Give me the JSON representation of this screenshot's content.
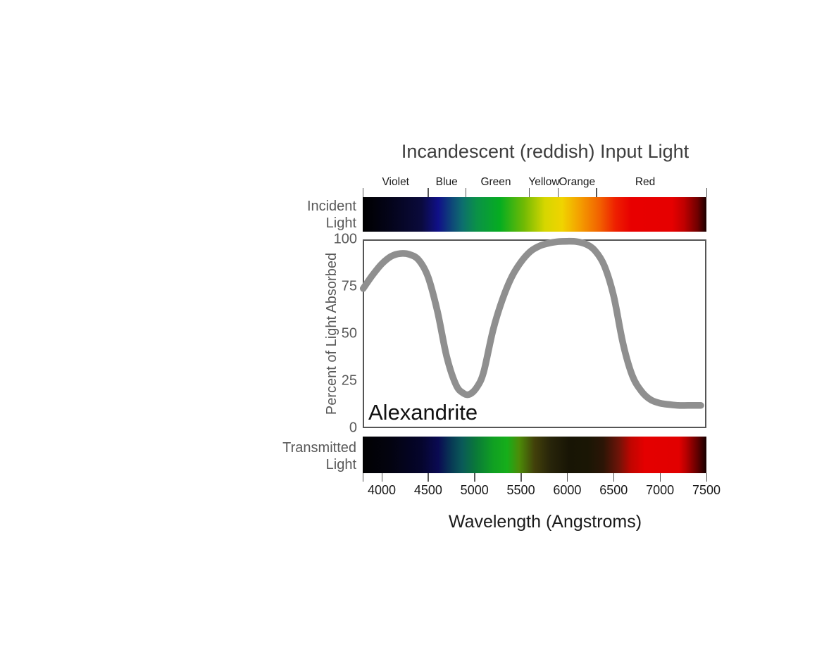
{
  "title": "Incandescent (reddish) Input Light",
  "colors": {
    "curve": "#8f8f8f",
    "axis_text": "#595959",
    "dark_text": "#1a1a1a",
    "title_text": "#3d3d3d",
    "box_border": "#555555",
    "tick": "#555555"
  },
  "incident": {
    "label_lines": [
      "Incident",
      "Light"
    ]
  },
  "transmitted": {
    "label_lines": [
      "Transmitted",
      "Light"
    ]
  },
  "spectrum_labels": {
    "labels": [
      {
        "text": "Violet",
        "angstroms": 4150
      },
      {
        "text": "Blue",
        "angstroms": 4700
      },
      {
        "text": "Green",
        "angstroms": 5230
      },
      {
        "text": "Yellow",
        "angstroms": 5750
      },
      {
        "text": "Orange",
        "angstroms": 6105
      },
      {
        "text": "Red",
        "angstroms": 6840
      }
    ],
    "boundary_ticks_angstroms": [
      3795,
      4500,
      4905,
      5590,
      5900,
      6315,
      7500
    ]
  },
  "incident_gradient": [
    [
      0.0,
      "#000000"
    ],
    [
      0.08,
      "#04041a"
    ],
    [
      0.17,
      "#0a0a3c"
    ],
    [
      0.22,
      "#101088"
    ],
    [
      0.26,
      "#0e4878"
    ],
    [
      0.29,
      "#0d6e6e"
    ],
    [
      0.33,
      "#0a9148"
    ],
    [
      0.4,
      "#06ad20"
    ],
    [
      0.47,
      "#72ba04"
    ],
    [
      0.53,
      "#d6d600"
    ],
    [
      0.58,
      "#f0d400"
    ],
    [
      0.63,
      "#f4a000"
    ],
    [
      0.69,
      "#f26000"
    ],
    [
      0.735,
      "#ee2000"
    ],
    [
      0.78,
      "#e80000"
    ],
    [
      0.9,
      "#e60000"
    ],
    [
      0.935,
      "#c00000"
    ],
    [
      0.975,
      "#6e0000"
    ],
    [
      1.0,
      "#1a0000"
    ]
  ],
  "transmitted_gradient": [
    [
      0.0,
      "#020202"
    ],
    [
      0.08,
      "#030310"
    ],
    [
      0.17,
      "#05052c"
    ],
    [
      0.22,
      "#0a0a52"
    ],
    [
      0.26,
      "#083c55"
    ],
    [
      0.29,
      "#0a5a58"
    ],
    [
      0.33,
      "#0a7a38"
    ],
    [
      0.38,
      "#10a022"
    ],
    [
      0.42,
      "#16ae1a"
    ],
    [
      0.455,
      "#4c8c08"
    ],
    [
      0.5,
      "#42400a"
    ],
    [
      0.545,
      "#28250a"
    ],
    [
      0.6,
      "#181505"
    ],
    [
      0.655,
      "#1a1605"
    ],
    [
      0.7,
      "#2c1506"
    ],
    [
      0.745,
      "#6e1408"
    ],
    [
      0.78,
      "#c00500"
    ],
    [
      0.82,
      "#e40000"
    ],
    [
      0.92,
      "#e20000"
    ],
    [
      0.94,
      "#ba0000"
    ],
    [
      0.975,
      "#5e0000"
    ],
    [
      1.0,
      "#160000"
    ]
  ],
  "chart_data": {
    "type": "line",
    "title": "Incandescent (reddish) Input Light",
    "xlabel": "Wavelength (Angstroms)",
    "ylabel": "Percent of Light Absorbed",
    "series_label": "Alexandrite",
    "xlim": [
      3795,
      7500
    ],
    "ylim": [
      0,
      100
    ],
    "x_ticks": [
      4000,
      4500,
      5000,
      5500,
      6000,
      6500,
      7000,
      7500
    ],
    "x_edge_tick": 3795,
    "y_ticks": [
      0,
      25,
      50,
      75,
      100
    ],
    "grid": false,
    "legend": "none",
    "points": [
      [
        3800,
        74
      ],
      [
        3900,
        81
      ],
      [
        4000,
        87
      ],
      [
        4100,
        91
      ],
      [
        4200,
        92.5
      ],
      [
        4300,
        92
      ],
      [
        4400,
        89
      ],
      [
        4500,
        80
      ],
      [
        4600,
        62
      ],
      [
        4700,
        38
      ],
      [
        4800,
        23
      ],
      [
        4880,
        18.5
      ],
      [
        4950,
        18
      ],
      [
        5030,
        22
      ],
      [
        5100,
        30
      ],
      [
        5200,
        52
      ],
      [
        5300,
        68
      ],
      [
        5400,
        80
      ],
      [
        5500,
        88
      ],
      [
        5600,
        93.5
      ],
      [
        5700,
        96.5
      ],
      [
        5800,
        98
      ],
      [
        5900,
        98.8
      ],
      [
        6000,
        99
      ],
      [
        6100,
        98.8
      ],
      [
        6200,
        97.5
      ],
      [
        6300,
        94
      ],
      [
        6400,
        86
      ],
      [
        6500,
        70
      ],
      [
        6600,
        45
      ],
      [
        6700,
        28
      ],
      [
        6800,
        19.5
      ],
      [
        6900,
        15
      ],
      [
        7000,
        13.2
      ],
      [
        7100,
        12.5
      ],
      [
        7200,
        12
      ],
      [
        7300,
        12
      ],
      [
        7440,
        12
      ]
    ]
  }
}
